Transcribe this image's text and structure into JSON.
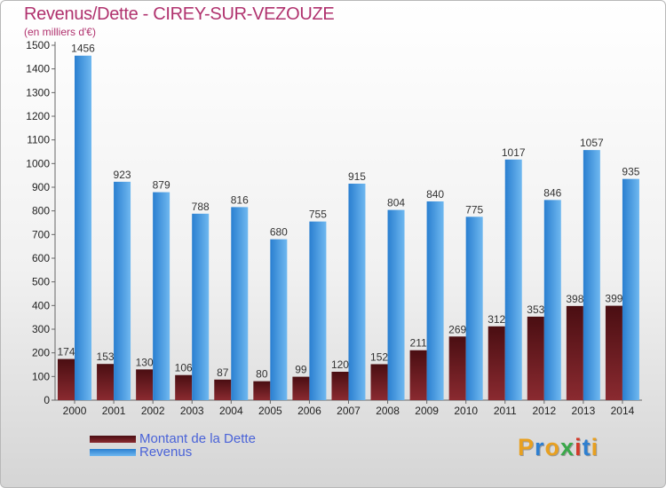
{
  "title": "Revenus/Dette - CIREY-SUR-VEZOUZE",
  "subtitle": "(en milliers d'€)",
  "brand": "Proxiti",
  "colors": {
    "title": "#b0326e",
    "legend_text": "#4a63d8",
    "debt_top": "#4a0e12",
    "debt_bottom": "#8a2a30",
    "revenue_left": "#2a7fd0",
    "revenue_right": "#6fb8f0",
    "brand_letters": [
      "#e8a020",
      "#2e7fd0",
      "#e8a020",
      "#3aa84a",
      "#d33a2a",
      "#2e7fd0",
      "#e8a020"
    ]
  },
  "chart_data": {
    "type": "bar",
    "title": "Revenus/Dette - CIREY-SUR-VEZOUZE",
    "ylabel": "(en milliers d'€)",
    "xlabel": "",
    "ylim": [
      0,
      1500
    ],
    "ytick_step": 100,
    "grid": false,
    "legend_position": "bottom-left",
    "categories": [
      "2000",
      "2001",
      "2002",
      "2003",
      "2004",
      "2005",
      "2006",
      "2007",
      "2008",
      "2009",
      "2010",
      "2011",
      "2012",
      "2013",
      "2014"
    ],
    "series": [
      {
        "name": "Montant de la Dette",
        "values": [
          174,
          153,
          130,
          106,
          87,
          80,
          99,
          120,
          152,
          211,
          269,
          312,
          353,
          398,
          399
        ]
      },
      {
        "name": "Revenus",
        "values": [
          1456,
          923,
          879,
          788,
          816,
          680,
          755,
          915,
          804,
          840,
          775,
          1017,
          846,
          1057,
          935
        ]
      }
    ]
  }
}
